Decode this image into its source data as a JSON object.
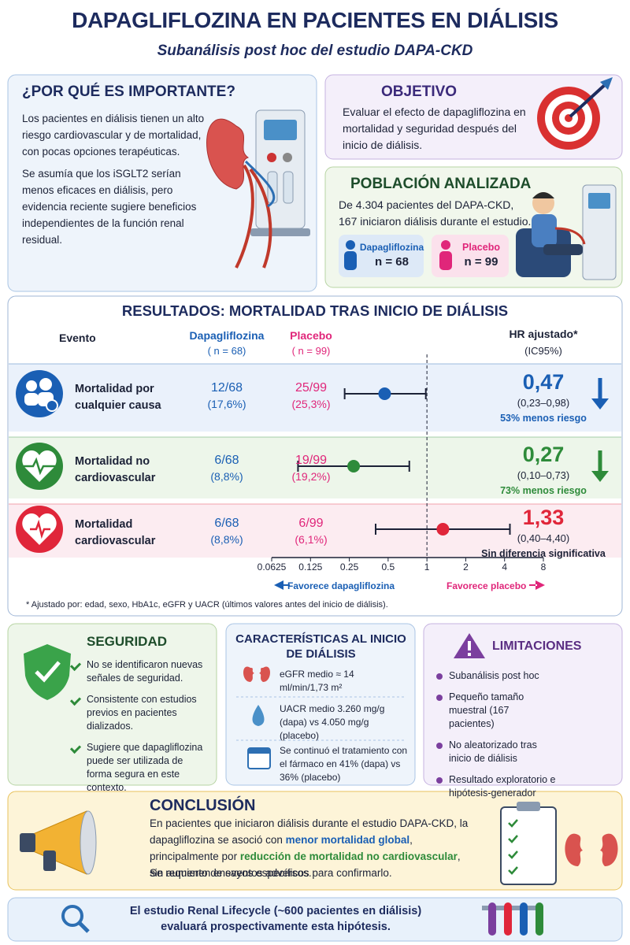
{
  "header": {
    "title": "DAPAGLIFLOZINA EN PACIENTES EN DIÁLISIS",
    "subtitle": "Subanálisis post hoc del estudio DAPA-CKD"
  },
  "importance": {
    "title": "¿POR QUÉ ES IMPORTANTE?",
    "paragraphs": [
      "Los pacientes en diálisis tienen un alto riesgo cardiovascular y de mortalidad, con pocas opciones terapéuticas.",
      "Se asumía que los iSGLT2 serían menos eficaces en diálisis, pero evidencia reciente sugiere beneficios independientes de la función renal residual."
    ]
  },
  "objective": {
    "title": "OBJETIVO",
    "text": "Evaluar el efecto de dapagliflozina en mortalidad y seguridad después del inicio de diálisis."
  },
  "population": {
    "title": "POBLACIÓN ANALIZADA",
    "text": "De 4.304 pacientes del DAPA-CKD, 167 iniciaron diálisis durante el estudio.",
    "groups": [
      {
        "name": "Dapagliflozina",
        "n": "n = 68",
        "color": "#1a5fb4"
      },
      {
        "name": "Placebo",
        "n": "n = 99",
        "color": "#e0267a"
      }
    ]
  },
  "results": {
    "title": "RESULTADOS: MORTALIDAD TRAS INICIO DE DIÁLISIS",
    "headers": {
      "event": "Evento",
      "dapa": "Dapagliflozina",
      "dapa_n": "( n = 68)",
      "placebo": "Placebo",
      "placebo_n": "( n = 99)",
      "hr": "HR ajustado*",
      "hr_ci": "(IC95%)"
    },
    "rows": [
      {
        "event": "Mortalidad por cualquier causa",
        "dapa": "12/68",
        "dapa_pct": "(17,6%)",
        "placebo": "25/99",
        "placebo_pct": "(25,3%)",
        "hr": 0.47,
        "hr_label": "0,47",
        "ci_low": 0.23,
        "ci_high": 0.98,
        "ci_label": "(0,23–0,98)",
        "note": "53% menos riesgo",
        "color": "#1a5fb4",
        "note_color": "#1a5fb4",
        "band": "#eaf1fb",
        "arrow": true
      },
      {
        "event": "Mortalidad no cardiovascular",
        "dapa": "6/68",
        "dapa_pct": "(8,8%)",
        "placebo": "19/99",
        "placebo_pct": "(19,2%)",
        "hr": 0.27,
        "hr_label": "0,27",
        "ci_low": 0.1,
        "ci_high": 0.73,
        "ci_label": "(0,10–0,73)",
        "note": "73% menos riesgo",
        "color": "#2e8b3a",
        "note_color": "#2e8b3a",
        "band": "#edf6ea",
        "arrow": true
      },
      {
        "event": "Mortalidad cardiovascular",
        "dapa": "6/68",
        "dapa_pct": "(8,8%)",
        "placebo": "6/99",
        "placebo_pct": "(6,1%)",
        "hr": 1.33,
        "hr_label": "1,33",
        "ci_low": 0.4,
        "ci_high": 4.4,
        "ci_label": "(0,40–4,40)",
        "note": "Sin diferencia significativa",
        "color": "#e0263a",
        "note_color": "#1c2237",
        "band": "#fcecf1",
        "arrow": false
      }
    ],
    "log": true,
    "xlim": [
      0.0625,
      8
    ],
    "xticks": [
      0.0625,
      0.125,
      0.25,
      0.5,
      1,
      2,
      4,
      8
    ],
    "reference": 1,
    "favors": {
      "left": "Favorece dapagliflozina",
      "right": "Favorece placebo"
    },
    "footnote": "* Ajustado por: edad, sexo, HbA1c, eGFR y UACR (últimos valores antes del inicio de diálisis)."
  },
  "safety": {
    "title": "SEGURIDAD",
    "items": [
      "No se identificaron nuevas señales de seguridad.",
      "Consistente con estudios previos en pacientes dializados.",
      "Sugiere que dapagliflozina puede ser utilizada de forma segura en este contexto."
    ]
  },
  "baseline": {
    "title": "CARACTERÍSTICAS AL INICIO DE DIÁLISIS",
    "items": [
      "eGFR medio ≈ 14 ml/min/1,73 m²",
      "UACR medio 3.260 mg/g (dapa) vs 4.050 mg/g (placebo)",
      "Se continuó el tratamiento con el fármaco en 41% (dapa) vs 36% (placebo)"
    ]
  },
  "limitations": {
    "title": "LIMITACIONES",
    "items": [
      "Subanálisis post hoc",
      "Pequeño tamaño muestral (167 pacientes)",
      "No aleatorizado tras inicio de diálisis",
      "Resultado exploratorio e hipótesis-generador"
    ]
  },
  "conclusion": {
    "title": "CONCLUSIÓN",
    "parts": [
      "En pacientes que iniciaron diálisis durante el estudio DAPA-CKD, la dapagliflozina se asoció con ",
      "menor mortalidad global",
      ", principalmente por ",
      "reducción de mortalidad no cardiovascular",
      ", sin aumento de eventos adversos."
    ],
    "closing": "Se requieren ensayos específicos para confirmarlo."
  },
  "footer": {
    "text": "El estudio Renal Lifecycle (~600 pacientes en diálisis) evaluará prospectivamente esta hipótesis."
  }
}
